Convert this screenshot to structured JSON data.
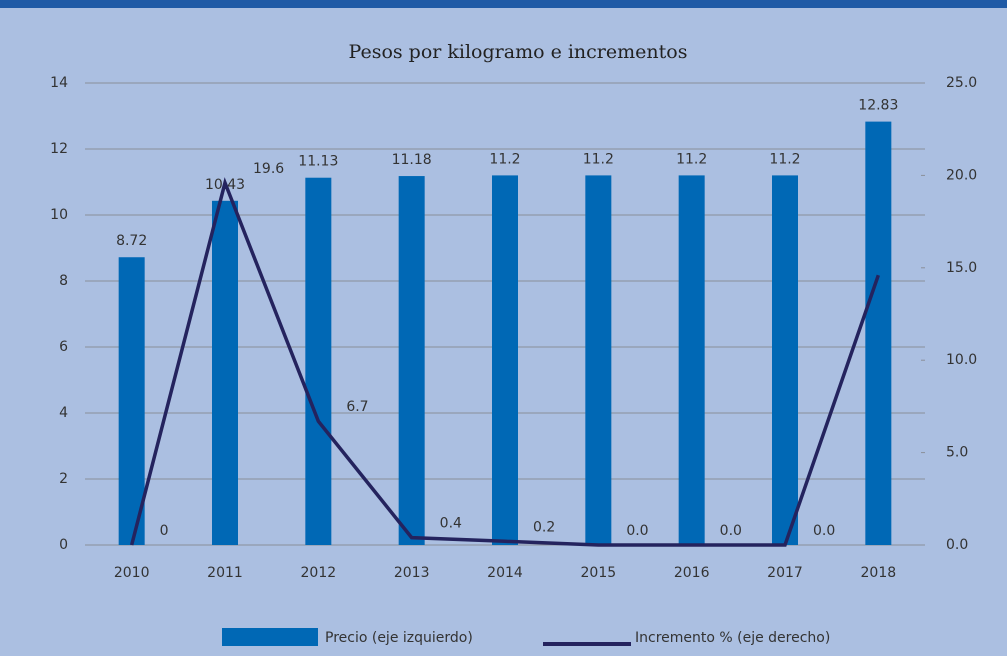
{
  "chart_data": {
    "type": "bar",
    "title": "Pesos por kilogramo e incrementos",
    "categories": [
      "2010",
      "2011",
      "2012",
      "2013",
      "2014",
      "2015",
      "2016",
      "2017",
      "2018"
    ],
    "series": [
      {
        "name": "Precio (eje izquierdo)",
        "type": "bar",
        "color": "#0068b5",
        "values": [
          8.72,
          10.43,
          11.13,
          11.18,
          11.2,
          11.2,
          11.2,
          11.2,
          12.83
        ]
      },
      {
        "name": "Incremento % (eje derecho)",
        "type": "line",
        "axis": "y2",
        "color": "#24235e",
        "values": [
          0,
          19.6,
          6.7,
          0.4,
          0.2,
          0,
          0,
          0,
          14.6
        ],
        "value_labels": [
          "0",
          "19.6",
          "6.7",
          "0.4",
          "0.2",
          "0.0",
          "0.0",
          "0.0",
          null
        ]
      }
    ],
    "ylim": [
      0,
      14
    ],
    "yticks": [
      0,
      2,
      4,
      6,
      8,
      10,
      12,
      14
    ],
    "y2lim": [
      0,
      25
    ],
    "y2ticks": [
      {
        "value": 0,
        "label": "0.0"
      },
      {
        "value": 5,
        "label": "5.0"
      },
      {
        "value": 10,
        "label": "10.0"
      },
      {
        "value": 15,
        "label": "15.0"
      },
      {
        "value": 20,
        "label": "20.0"
      },
      {
        "value": 25,
        "label": "25.0"
      }
    ],
    "grid": true,
    "legend": "bottom"
  }
}
